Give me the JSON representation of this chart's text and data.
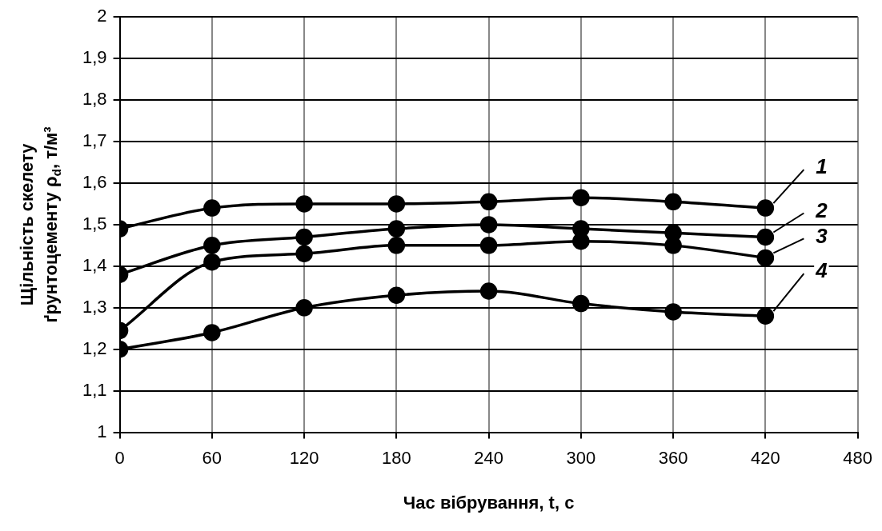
{
  "chart_data": {
    "type": "line",
    "xlabel": "Час вібрування, t, с",
    "ylabel": "Щільність скелету\nґрунтоцементу ρ$_{d}$, т/м³",
    "x": [
      0,
      60,
      120,
      180,
      240,
      300,
      360,
      420
    ],
    "series": [
      {
        "name": "1",
        "color": "#000000",
        "values": [
          1.49,
          1.54,
          1.55,
          1.55,
          1.555,
          1.565,
          1.555,
          1.54
        ]
      },
      {
        "name": "2",
        "color": "#000000",
        "values": [
          1.38,
          1.45,
          1.47,
          1.49,
          1.5,
          1.49,
          1.48,
          1.47
        ]
      },
      {
        "name": "3",
        "color": "#000000",
        "values": [
          1.245,
          1.41,
          1.43,
          1.45,
          1.45,
          1.46,
          1.45,
          1.42
        ]
      },
      {
        "name": "4",
        "color": "#000000",
        "values": [
          1.2,
          1.24,
          1.3,
          1.33,
          1.34,
          1.31,
          1.29,
          1.28
        ]
      }
    ],
    "xlim": [
      0,
      480
    ],
    "xticks": [
      0,
      60,
      120,
      180,
      240,
      300,
      360,
      420,
      480
    ],
    "ylim": [
      1,
      2
    ],
    "yticks": [
      {
        "value": 1,
        "label": "1"
      },
      {
        "value": 1.1,
        "label": "1,1"
      },
      {
        "value": 1.2,
        "label": "1,2"
      },
      {
        "value": 1.3,
        "label": "1,3"
      },
      {
        "value": 1.4,
        "label": "1,4"
      },
      {
        "value": 1.5,
        "label": "1,5"
      },
      {
        "value": 1.6,
        "label": "1,6"
      },
      {
        "value": 1.7,
        "label": "1,7"
      },
      {
        "value": 1.8,
        "label": "1,8"
      },
      {
        "value": 1.9,
        "label": "1,9"
      },
      {
        "value": 2,
        "label": "2"
      }
    ],
    "grid": true,
    "marker": "circle",
    "line_style": "solid",
    "legend": "right"
  }
}
